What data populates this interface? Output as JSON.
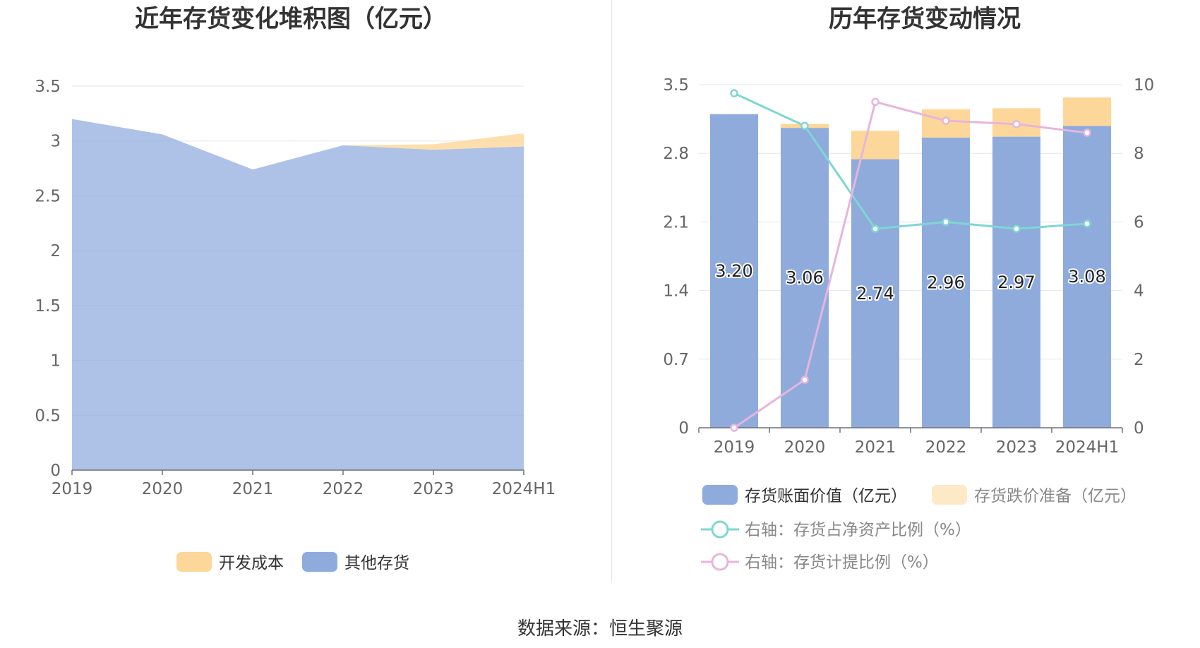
{
  "charts": [
    {
      "type": "area",
      "title": "近年存货变化堆积图（亿元）",
      "categories": [
        "2019",
        "2020",
        "2021",
        "2022",
        "2023",
        "2024H1"
      ],
      "y_ticks": [
        "0",
        "0.5",
        "1",
        "1.5",
        "2",
        "2.5",
        "3",
        "3.5"
      ],
      "ylim": [
        0,
        3.5
      ],
      "stacked": true,
      "series": [
        {
          "name": "其他存货",
          "color": "#8eabdc",
          "values": [
            3.2,
            3.06,
            2.74,
            2.96,
            2.92,
            2.95
          ]
        },
        {
          "name": "开发成本",
          "color": "#fcd799",
          "values": [
            0.0,
            0.0,
            0.0,
            0.0,
            0.05,
            0.12
          ]
        }
      ],
      "legend_order": [
        "开发成本",
        "其他存货"
      ],
      "legend_position": "bottom"
    },
    {
      "type": "bar+line",
      "title": "历年存货变动情况",
      "categories": [
        "2019",
        "2020",
        "2021",
        "2022",
        "2023",
        "2024H1"
      ],
      "y_left_ticks": [
        "0",
        "0.7",
        "1.4",
        "2.1",
        "2.8",
        "3.5"
      ],
      "ylim_left": [
        0,
        3.5
      ],
      "y_right_ticks": [
        "0",
        "2",
        "4",
        "6",
        "8",
        "10"
      ],
      "ylim_right": [
        0,
        10
      ],
      "stacked": true,
      "bars": [
        {
          "name": "存货账面价值（亿元）",
          "color": "#8eabdc",
          "values": [
            3.2,
            3.06,
            2.74,
            2.96,
            2.97,
            3.08
          ],
          "labels": [
            "3.20",
            "3.06",
            "2.74",
            "2.96",
            "2.97",
            "3.08"
          ]
        },
        {
          "name": "存货跌价准备（亿元）",
          "color": "#fcd799",
          "legend_color": "#fde9c7",
          "values": [
            0.0,
            0.04,
            0.29,
            0.29,
            0.29,
            0.29
          ]
        }
      ],
      "lines": [
        {
          "name": "右轴：存货占净资产比例（%）",
          "color": "#7fd6d4",
          "axis": "right",
          "values": [
            9.75,
            8.8,
            5.8,
            6.0,
            5.8,
            5.95
          ]
        },
        {
          "name": "右轴：存货计提比例（%）",
          "color": "#e6b5dc",
          "axis": "right",
          "values": [
            0.0,
            1.4,
            9.5,
            8.95,
            8.85,
            8.6
          ]
        }
      ],
      "legend_position": "bottom"
    }
  ],
  "footer": {
    "source": "数据来源：恒生聚源"
  }
}
